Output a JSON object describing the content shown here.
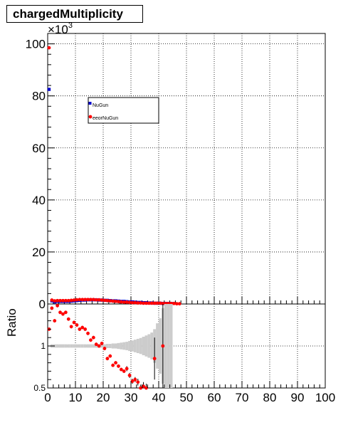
{
  "chart_data": [
    {
      "type": "scatter",
      "title": "chargedMultiplicity",
      "exponent_label": "×10",
      "exponent_power": "3",
      "xlim": [
        0,
        100
      ],
      "ylim": [
        0,
        104
      ],
      "grid": true,
      "legend_placement": "top-left",
      "series": [
        {
          "name": "NuGun",
          "color": "#0000cc",
          "marker": "square",
          "x": [
            0.5,
            1.5,
            2.5,
            3.5,
            4.5,
            5.5,
            6.5,
            7.5,
            8.5,
            9.5,
            10.5,
            11.5,
            12.5,
            13.5,
            14.5,
            15.5,
            16.5,
            17.5,
            18.5,
            19.5,
            20.5,
            21.5,
            22.5,
            23.5,
            24.5,
            25.5,
            26.5,
            27.5,
            28.5,
            29.5,
            30.5,
            31.5,
            32.5,
            33.5,
            34.5,
            35.5,
            36.5,
            37.5,
            38.5,
            39.5,
            40.5,
            41.5,
            42.5,
            43.5,
            44.5
          ],
          "y": [
            82.5,
            1.2,
            0.8,
            1.0,
            1.0,
            1.0,
            1.0,
            1.0,
            1.1,
            1.2,
            1.3,
            1.4,
            1.5,
            1.5,
            1.6,
            1.6,
            1.6,
            1.6,
            1.5,
            1.5,
            1.4,
            1.4,
            1.3,
            1.2,
            1.2,
            1.1,
            1.0,
            1.0,
            0.9,
            0.8,
            0.8,
            0.7,
            0.6,
            0.6,
            0.5,
            0.5,
            0.4,
            0.4,
            0.3,
            0.3,
            0.3,
            0.2,
            0.2,
            0.2,
            0.2
          ]
        },
        {
          "name": "eeorNuGun",
          "color": "#ff0000",
          "marker": "circle",
          "x": [
            0.5,
            1.5,
            2.5,
            3.5,
            4.5,
            5.5,
            6.5,
            7.5,
            8.5,
            9.5,
            10.5,
            11.5,
            12.5,
            13.5,
            14.5,
            15.5,
            16.5,
            17.5,
            18.5,
            19.5,
            20.5,
            21.5,
            22.5,
            23.5,
            24.5,
            25.5,
            26.5,
            27.5,
            28.5,
            29.5,
            30.5,
            31.5,
            32.5,
            33.5,
            34.5,
            35.5,
            36.5,
            37.5,
            38.5,
            39.5,
            40.5,
            41.5,
            42.5,
            43.5,
            44.5,
            45.5,
            46.5,
            47.5
          ],
          "y": [
            98.5,
            1.5,
            1.2,
            1.3,
            1.3,
            1.3,
            1.3,
            1.3,
            1.4,
            1.5,
            1.6,
            1.7,
            1.7,
            1.7,
            1.7,
            1.7,
            1.7,
            1.6,
            1.6,
            1.5,
            1.4,
            1.3,
            1.2,
            1.1,
            1.0,
            0.9,
            0.8,
            0.7,
            0.7,
            0.6,
            0.5,
            0.5,
            0.4,
            0.4,
            0.3,
            0.3,
            0.3,
            0.3,
            0.3,
            0.3,
            0.3,
            0.2,
            0.2,
            0.2,
            0.2,
            0.2,
            0.1,
            0.1
          ]
        }
      ]
    },
    {
      "type": "scatter",
      "ylabel": "Ratio",
      "xlim": [
        0,
        100
      ],
      "ylim": [
        0.5,
        1.5
      ],
      "yticks_labeled": [
        0.5,
        1
      ],
      "xticks_labeled": [
        0,
        10,
        20,
        30,
        40,
        50,
        60,
        70,
        80,
        90,
        100
      ],
      "grid": true,
      "band_color": "#cccccc",
      "band": {
        "x": [
          0.5,
          1.5,
          2.5,
          3.5,
          4.5,
          5.5,
          6.5,
          7.5,
          8.5,
          9.5,
          10.5,
          11.5,
          12.5,
          13.5,
          14.5,
          15.5,
          16.5,
          17.5,
          18.5,
          19.5,
          20.5,
          21.5,
          22.5,
          23.5,
          24.5,
          25.5,
          26.5,
          27.5,
          28.5,
          29.5,
          30.5,
          31.5,
          32.5,
          33.5,
          34.5,
          35.5,
          36.5,
          37.5,
          38.5,
          39.5,
          40.5,
          41.5,
          42.5,
          43.5,
          44.5
        ],
        "half_width": [
          0.002,
          0.02,
          0.02,
          0.02,
          0.02,
          0.02,
          0.02,
          0.02,
          0.02,
          0.02,
          0.02,
          0.02,
          0.02,
          0.02,
          0.02,
          0.02,
          0.02,
          0.02,
          0.02,
          0.02,
          0.02,
          0.025,
          0.025,
          0.03,
          0.03,
          0.035,
          0.04,
          0.045,
          0.05,
          0.06,
          0.065,
          0.075,
          0.085,
          0.095,
          0.11,
          0.125,
          0.14,
          0.16,
          0.2,
          0.27,
          0.33,
          0.45,
          0.55,
          0.6,
          0.6
        ]
      },
      "series": [
        {
          "color": "#ff0000",
          "x": [
            0.5,
            1.5,
            2.5,
            3.5,
            4.5,
            5.5,
            6.5,
            7.5,
            8.5,
            9.5,
            10.5,
            11.5,
            12.5,
            13.5,
            14.5,
            15.5,
            16.5,
            17.5,
            18.5,
            19.5,
            20.5,
            21.5,
            22.5,
            23.5,
            24.5,
            25.5,
            26.5,
            27.5,
            28.5,
            29.5,
            30.5,
            31.5,
            32.5,
            33.5,
            34.5,
            35.5,
            38.5,
            41.5
          ],
          "y": [
            1.2,
            1.45,
            1.3,
            1.48,
            1.4,
            1.38,
            1.4,
            1.32,
            1.23,
            1.28,
            1.25,
            1.2,
            1.22,
            1.2,
            1.15,
            1.07,
            1.1,
            1.02,
            1.0,
            1.03,
            0.97,
            0.85,
            0.88,
            0.77,
            0.8,
            0.76,
            0.72,
            0.7,
            0.73,
            0.65,
            0.58,
            0.6,
            0.57,
            0.5,
            0.52,
            0.5,
            0.85,
            1.0
          ],
          "err": [
            0.01,
            0.02,
            0.02,
            0.02,
            0.02,
            0.02,
            0.02,
            0.02,
            0.02,
            0.02,
            0.02,
            0.02,
            0.02,
            0.02,
            0.02,
            0.02,
            0.02,
            0.02,
            0.02,
            0.02,
            0.02,
            0.02,
            0.02,
            0.02,
            0.02,
            0.02,
            0.02,
            0.02,
            0.03,
            0.03,
            0.03,
            0.03,
            0.04,
            0.04,
            0.05,
            0.05,
            0.25,
            0.5
          ]
        }
      ]
    }
  ]
}
